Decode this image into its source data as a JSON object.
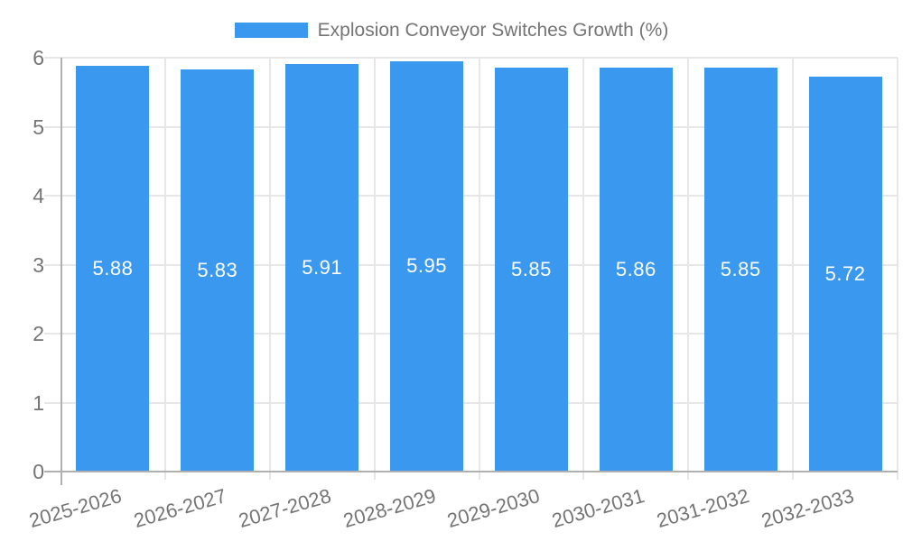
{
  "chart_data": {
    "type": "bar",
    "title": "",
    "legend_label": "Explosion Conveyor Switches Growth (%)",
    "legend_position": "top",
    "categories": [
      "2025-2026",
      "2026-2027",
      "2027-2028",
      "2028-2029",
      "2029-2030",
      "2030-2031",
      "2031-2032",
      "2032-2033"
    ],
    "series": [
      {
        "name": "Explosion Conveyor Switches Growth (%)",
        "values": [
          5.88,
          5.83,
          5.91,
          5.95,
          5.85,
          5.86,
          5.85,
          5.72
        ]
      }
    ],
    "value_labels": [
      "5.88",
      "5.83",
      "5.91",
      "5.95",
      "5.85",
      "5.86",
      "5.85",
      "5.72"
    ],
    "xlabel": "",
    "ylabel": "",
    "ylim": [
      0,
      6
    ],
    "yticks": [
      "0",
      "1",
      "2",
      "3",
      "4",
      "5",
      "6"
    ],
    "grid": "on",
    "colors": {
      "bar": "#3A99EF",
      "grid_line": "#e7e7e7",
      "axis_line": "#b0b0b0",
      "axis_text": "#757575",
      "legend_text": "#757575",
      "value_label": "#ffffff",
      "background": "#ffffff"
    }
  }
}
